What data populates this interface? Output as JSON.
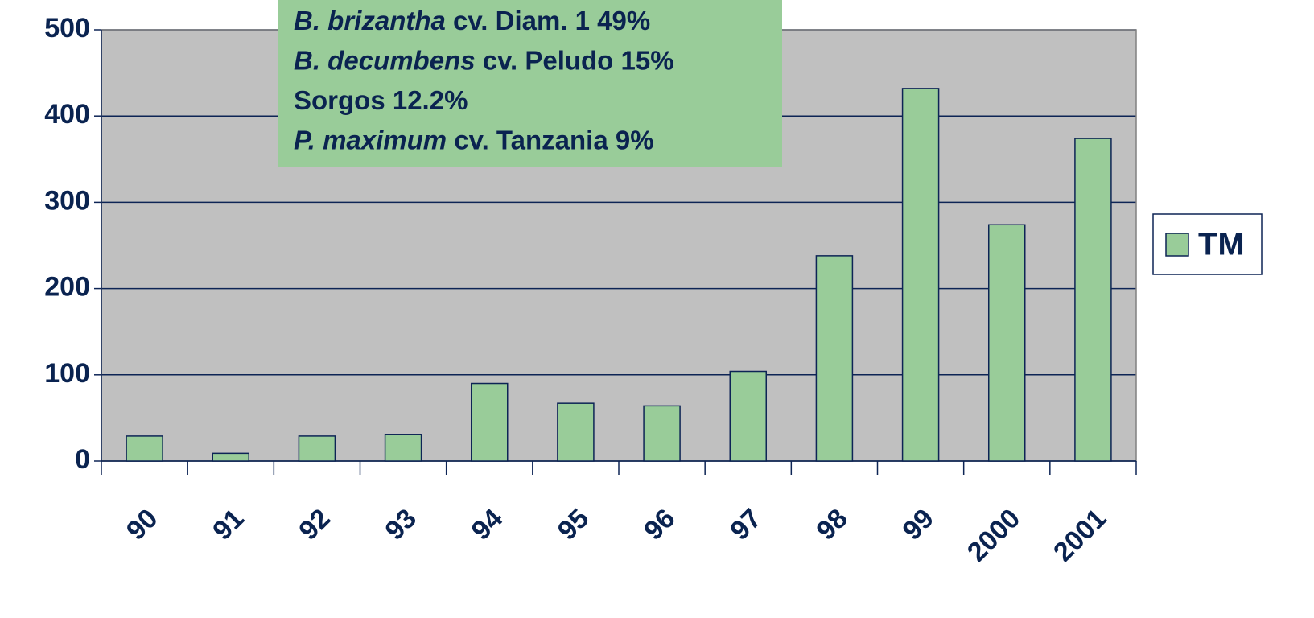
{
  "chart_data": {
    "type": "bar",
    "categories": [
      "90",
      "91",
      "92",
      "93",
      "94",
      "95",
      "96",
      "97",
      "98",
      "99",
      "2000",
      "2001"
    ],
    "series": [
      {
        "name": "TM",
        "color": "#99cc99",
        "values": [
          29,
          9,
          29,
          31,
          90,
          67,
          64,
          104,
          238,
          432,
          274,
          374
        ]
      }
    ],
    "ylim": [
      0,
      500
    ],
    "yticks": [
      0,
      100,
      200,
      300,
      400,
      500
    ],
    "grid": true,
    "legend": "right",
    "annotation": [
      {
        "species": "B. brizantha",
        "text": "cv. Diam. 1  49%"
      },
      {
        "species": "B. decumbens",
        "text": "cv. Peludo 15%"
      },
      {
        "text": "Sorgos  12.2%"
      },
      {
        "species": "P. maximum",
        "text": "cv. Tanzania 9%"
      }
    ]
  }
}
